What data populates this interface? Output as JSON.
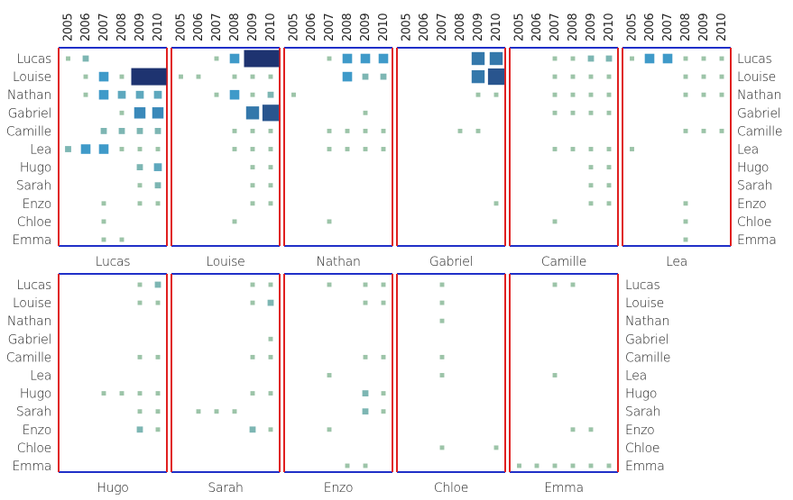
{
  "chart_data": {
    "type": "heatmap",
    "title": "",
    "names": [
      "Lucas",
      "Louise",
      "Nathan",
      "Gabriel",
      "Camille",
      "Lea",
      "Hugo",
      "Sarah",
      "Enzo",
      "Chloe",
      "Emma"
    ],
    "years": [
      "2005",
      "2006",
      "2007",
      "2008",
      "2009",
      "2010"
    ],
    "columns_top": [
      "Lucas",
      "Louise",
      "Nathan",
      "Gabriel",
      "Camille",
      "Lea"
    ],
    "columns_bottom": [
      "Hugo",
      "Sarah",
      "Enzo",
      "Chloe",
      "Emma"
    ],
    "value_scale": [
      0,
      10
    ],
    "colors": {
      "low": "#9cc4a8",
      "mid": "#3f9ac9",
      "high": "#1e3370",
      "panel_left_right": "#e02020",
      "panel_top_bottom": "#2030c8"
    },
    "panels": {
      "Lucas": [
        [
          1,
          2,
          0,
          0,
          0,
          0
        ],
        [
          0,
          1,
          4,
          1,
          10,
          10
        ],
        [
          0,
          1,
          4,
          3,
          3,
          3
        ],
        [
          0,
          0,
          0,
          1,
          5,
          5
        ],
        [
          0,
          0,
          2,
          2,
          2,
          2
        ],
        [
          2,
          4,
          4,
          1,
          1,
          1
        ],
        [
          0,
          0,
          0,
          0,
          2,
          3
        ],
        [
          0,
          0,
          0,
          0,
          1,
          2
        ],
        [
          0,
          0,
          1,
          0,
          1,
          1
        ],
        [
          0,
          0,
          1,
          0,
          0,
          0
        ],
        [
          0,
          0,
          1,
          1,
          0,
          0
        ]
      ],
      "Louise": [
        [
          0,
          0,
          1,
          4,
          10,
          10
        ],
        [
          1,
          1,
          0,
          1,
          1,
          1
        ],
        [
          0,
          0,
          1,
          4,
          1,
          2
        ],
        [
          0,
          0,
          0,
          0,
          6,
          8
        ],
        [
          0,
          0,
          0,
          1,
          1,
          1
        ],
        [
          0,
          0,
          0,
          1,
          1,
          1
        ],
        [
          0,
          0,
          0,
          0,
          1,
          1
        ],
        [
          0,
          0,
          0,
          0,
          1,
          1
        ],
        [
          0,
          0,
          0,
          0,
          1,
          1
        ],
        [
          0,
          0,
          0,
          1,
          0,
          0
        ],
        [
          0,
          0,
          0,
          0,
          0,
          0
        ]
      ],
      "Nathan": [
        [
          0,
          0,
          1,
          4,
          4,
          4
        ],
        [
          0,
          0,
          0,
          4,
          2,
          2
        ],
        [
          1,
          0,
          0,
          0,
          0,
          0
        ],
        [
          0,
          0,
          0,
          0,
          1,
          0
        ],
        [
          0,
          0,
          1,
          1,
          1,
          1
        ],
        [
          0,
          0,
          1,
          1,
          1,
          1
        ],
        [
          0,
          0,
          0,
          0,
          0,
          0
        ],
        [
          0,
          0,
          0,
          0,
          0,
          0
        ],
        [
          0,
          0,
          0,
          0,
          0,
          0
        ],
        [
          0,
          0,
          1,
          0,
          0,
          0
        ],
        [
          0,
          0,
          0,
          0,
          0,
          0
        ]
      ],
      "Gabriel": [
        [
          0,
          0,
          0,
          0,
          6,
          6
        ],
        [
          0,
          0,
          0,
          0,
          6,
          8
        ],
        [
          0,
          0,
          0,
          0,
          1,
          1
        ],
        [
          0,
          0,
          0,
          0,
          0,
          0
        ],
        [
          0,
          0,
          0,
          1,
          1,
          0
        ],
        [
          0,
          0,
          0,
          0,
          0,
          0
        ],
        [
          0,
          0,
          0,
          0,
          0,
          0
        ],
        [
          0,
          0,
          0,
          0,
          0,
          0
        ],
        [
          0,
          0,
          0,
          0,
          0,
          1
        ],
        [
          0,
          0,
          0,
          0,
          0,
          0
        ],
        [
          0,
          0,
          0,
          0,
          0,
          0
        ]
      ],
      "Camille": [
        [
          0,
          0,
          1,
          1,
          2,
          2
        ],
        [
          0,
          0,
          1,
          1,
          1,
          1
        ],
        [
          0,
          0,
          1,
          1,
          1,
          1
        ],
        [
          0,
          0,
          1,
          1,
          1,
          1
        ],
        [
          0,
          0,
          0,
          0,
          0,
          0
        ],
        [
          0,
          0,
          1,
          1,
          1,
          1
        ],
        [
          0,
          0,
          0,
          0,
          1,
          1
        ],
        [
          0,
          0,
          0,
          0,
          1,
          1
        ],
        [
          0,
          0,
          0,
          0,
          1,
          1
        ],
        [
          0,
          0,
          1,
          0,
          0,
          0
        ],
        [
          0,
          0,
          0,
          0,
          0,
          0
        ]
      ],
      "Lea": [
        [
          1,
          4,
          4,
          1,
          1,
          1
        ],
        [
          0,
          0,
          0,
          1,
          1,
          1
        ],
        [
          0,
          0,
          0,
          1,
          1,
          1
        ],
        [
          0,
          0,
          0,
          0,
          0,
          0
        ],
        [
          0,
          0,
          0,
          1,
          1,
          1
        ],
        [
          1,
          0,
          0,
          0,
          0,
          0
        ],
        [
          0,
          0,
          0,
          0,
          0,
          0
        ],
        [
          0,
          0,
          0,
          0,
          0,
          0
        ],
        [
          0,
          0,
          0,
          1,
          0,
          0
        ],
        [
          0,
          0,
          0,
          1,
          0,
          0
        ],
        [
          0,
          0,
          0,
          1,
          0,
          0
        ]
      ],
      "Hugo": [
        [
          0,
          0,
          0,
          0,
          1,
          2
        ],
        [
          0,
          0,
          0,
          0,
          1,
          1
        ],
        [
          0,
          0,
          0,
          0,
          0,
          0
        ],
        [
          0,
          0,
          0,
          0,
          0,
          0
        ],
        [
          0,
          0,
          0,
          0,
          1,
          1
        ],
        [
          0,
          0,
          0,
          0,
          0,
          0
        ],
        [
          0,
          0,
          1,
          1,
          1,
          1
        ],
        [
          0,
          0,
          0,
          0,
          1,
          1
        ],
        [
          0,
          0,
          0,
          0,
          2,
          1
        ],
        [
          0,
          0,
          0,
          0,
          0,
          0
        ],
        [
          0,
          0,
          0,
          0,
          0,
          0
        ]
      ],
      "Sarah": [
        [
          0,
          0,
          0,
          0,
          1,
          1
        ],
        [
          0,
          0,
          0,
          0,
          1,
          2
        ],
        [
          0,
          0,
          0,
          0,
          0,
          0
        ],
        [
          0,
          0,
          0,
          0,
          0,
          1
        ],
        [
          0,
          0,
          0,
          0,
          1,
          1
        ],
        [
          0,
          0,
          0,
          0,
          0,
          0
        ],
        [
          0,
          0,
          0,
          0,
          1,
          1
        ],
        [
          0,
          1,
          1,
          1,
          0,
          0
        ],
        [
          0,
          0,
          0,
          0,
          2,
          1
        ],
        [
          0,
          0,
          0,
          0,
          0,
          0
        ],
        [
          0,
          0,
          0,
          0,
          0,
          0
        ]
      ],
      "Enzo": [
        [
          0,
          0,
          1,
          0,
          1,
          1
        ],
        [
          0,
          0,
          0,
          0,
          1,
          1
        ],
        [
          0,
          0,
          0,
          0,
          0,
          0
        ],
        [
          0,
          0,
          0,
          0,
          0,
          0
        ],
        [
          0,
          0,
          0,
          0,
          1,
          1
        ],
        [
          0,
          0,
          1,
          0,
          0,
          0
        ],
        [
          0,
          0,
          0,
          0,
          2,
          1
        ],
        [
          0,
          0,
          0,
          0,
          2,
          1
        ],
        [
          0,
          0,
          1,
          0,
          0,
          0
        ],
        [
          0,
          0,
          0,
          0,
          0,
          0
        ],
        [
          0,
          0,
          0,
          1,
          1,
          0
        ]
      ],
      "Chloe": [
        [
          0,
          0,
          1,
          0,
          0,
          0
        ],
        [
          0,
          0,
          1,
          0,
          0,
          0
        ],
        [
          0,
          0,
          1,
          0,
          0,
          0
        ],
        [
          0,
          0,
          0,
          0,
          0,
          0
        ],
        [
          0,
          0,
          1,
          0,
          0,
          0
        ],
        [
          0,
          0,
          1,
          0,
          0,
          0
        ],
        [
          0,
          0,
          0,
          0,
          0,
          0
        ],
        [
          0,
          0,
          0,
          0,
          0,
          0
        ],
        [
          0,
          0,
          0,
          0,
          0,
          0
        ],
        [
          0,
          0,
          1,
          0,
          0,
          1
        ],
        [
          0,
          0,
          0,
          0,
          0,
          0
        ]
      ],
      "Emma": [
        [
          0,
          0,
          1,
          1,
          0,
          0
        ],
        [
          0,
          0,
          0,
          0,
          0,
          0
        ],
        [
          0,
          0,
          0,
          0,
          0,
          0
        ],
        [
          0,
          0,
          0,
          0,
          0,
          0
        ],
        [
          0,
          0,
          0,
          0,
          0,
          0
        ],
        [
          0,
          0,
          1,
          0,
          0,
          0
        ],
        [
          0,
          0,
          0,
          0,
          0,
          0
        ],
        [
          0,
          0,
          0,
          0,
          0,
          0
        ],
        [
          0,
          0,
          0,
          1,
          1,
          0
        ],
        [
          0,
          0,
          0,
          0,
          0,
          0
        ],
        [
          1,
          1,
          1,
          1,
          1,
          1
        ]
      ]
    }
  }
}
